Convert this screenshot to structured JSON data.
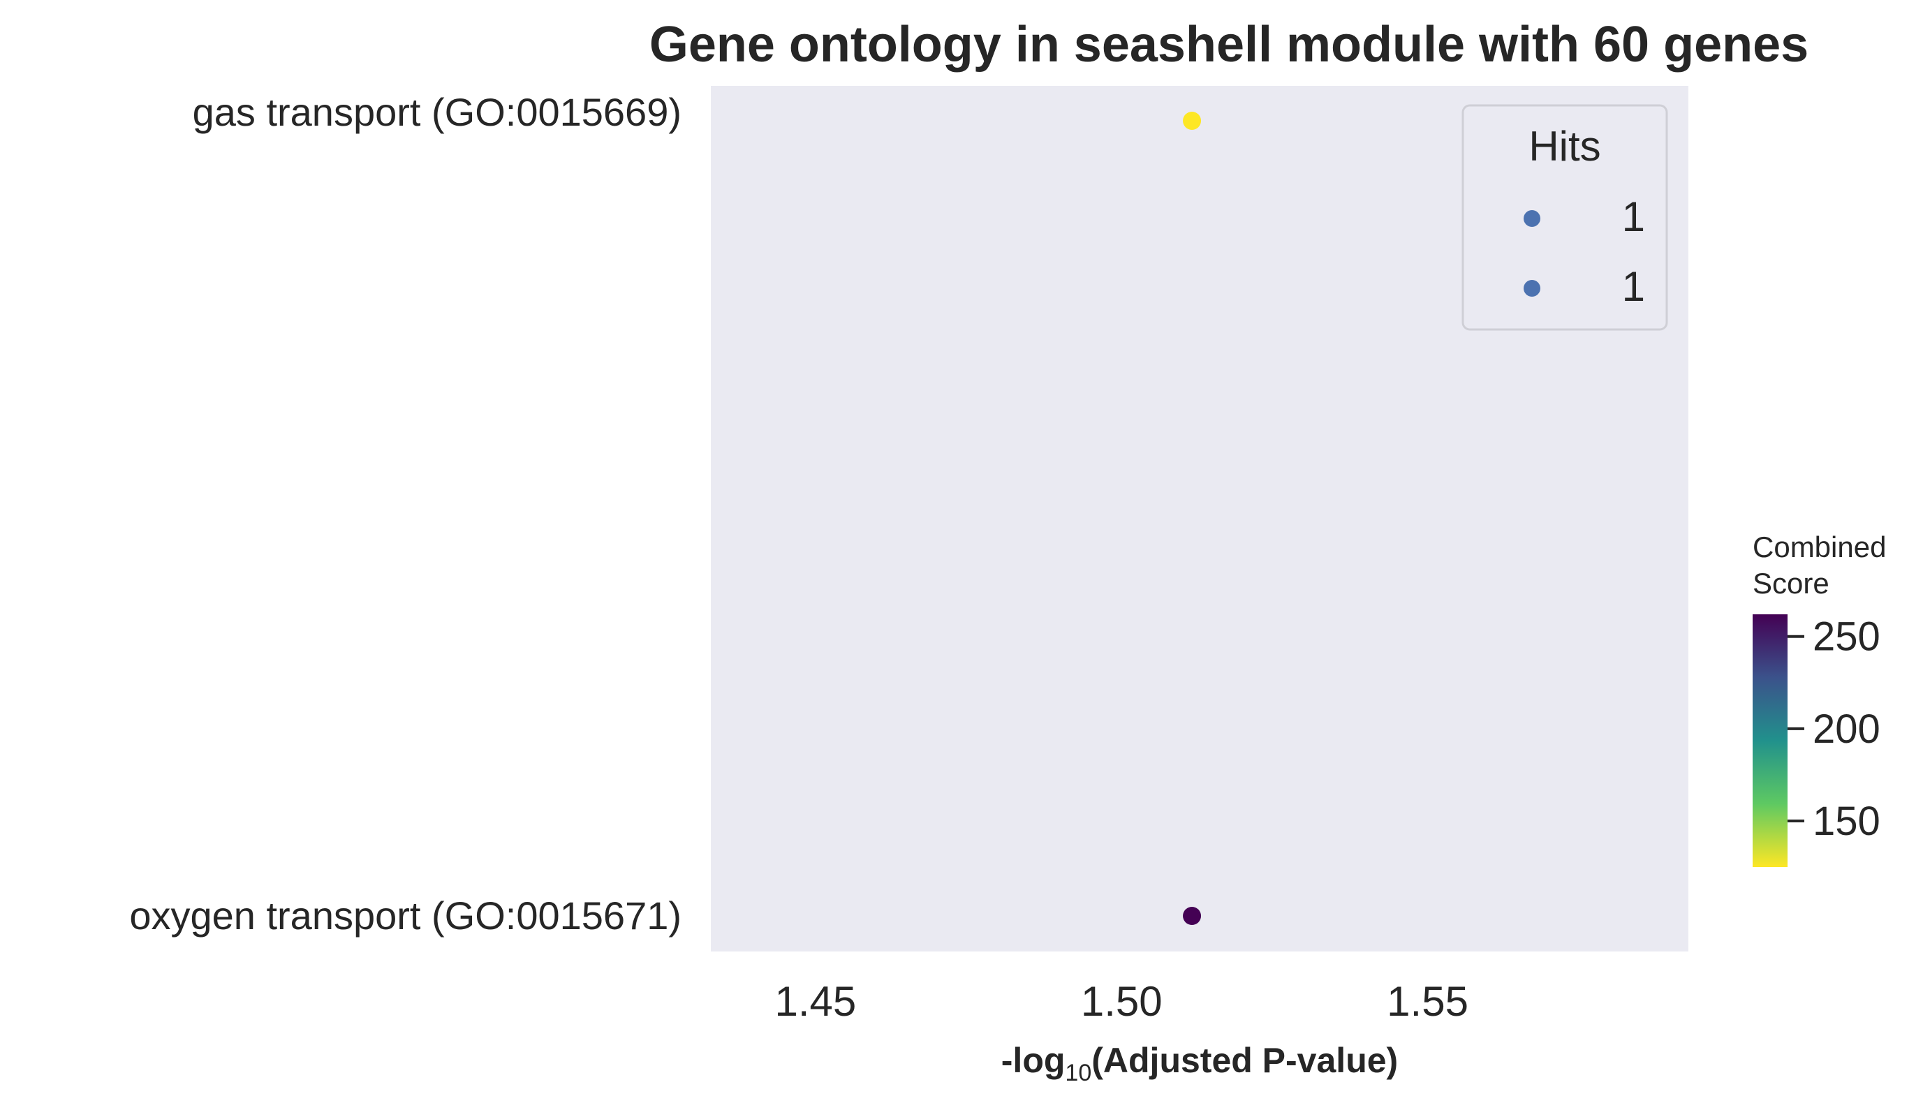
{
  "chart_data": {
    "type": "scatter",
    "title": "Gene ontology in seashell module with 60 genes",
    "xlabel_prefix": "-log",
    "xlabel_sub": "10",
    "xlabel_suffix": "(Adjusted P-value)",
    "ylabel": "",
    "xlim": [
      1.4329,
      1.5926
    ],
    "x_ticks": [
      1.45,
      1.5,
      1.55
    ],
    "x_tick_labels": [
      "1.45",
      "1.50",
      "1.55"
    ],
    "categories": [
      "gas transport (GO:0015669)",
      "oxygen transport (GO:0015671)"
    ],
    "points": [
      {
        "term": "gas transport (GO:0015669)",
        "x": 1.5115,
        "hits": 1,
        "combined_score": 125
      },
      {
        "term": "oxygen transport (GO:0015671)",
        "x": 1.5115,
        "hits": 1,
        "combined_score": 262
      }
    ],
    "grid": false,
    "background_color": "#eaeaf2",
    "legend": {
      "title": "Hits",
      "placement": "top-right",
      "marker_color": "#4c72b0",
      "entries": [
        "1",
        "1"
      ]
    },
    "colorbar": {
      "title_line1": "Combined",
      "title_line2": "Score",
      "colormap": "viridis_r",
      "range": [
        125,
        262
      ],
      "ticks": [
        150,
        200,
        250
      ],
      "tick_labels": [
        "150",
        "200",
        "250"
      ]
    }
  }
}
